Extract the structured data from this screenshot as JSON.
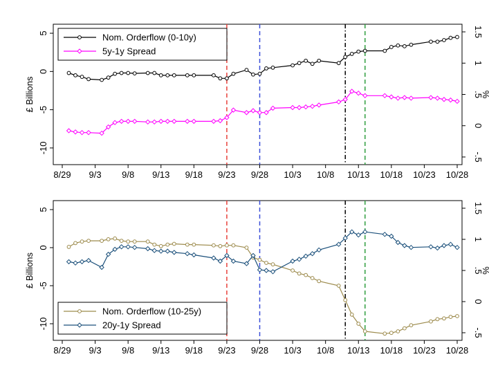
{
  "colors": {
    "black": "#000000",
    "magenta": "#ff00ff",
    "gold": "#9c8a4b",
    "navy": "#1a4f7a",
    "red_line": "#e8403a",
    "blue_line": "#3a4fd8",
    "green_line": "#2f9e3f",
    "black_line": "#000000"
  },
  "chart_data": [
    {
      "type": "line",
      "x_tick_labels": [
        "8/29",
        "9/3",
        "9/8",
        "9/13",
        "9/18",
        "9/23",
        "9/28",
        "10/3",
        "10/8",
        "10/13",
        "10/18",
        "10/23",
        "10/28"
      ],
      "x_ticks": [
        0,
        5,
        10,
        15,
        20,
        25,
        30,
        35,
        40,
        45,
        50,
        55,
        60
      ],
      "x_range": [
        0,
        60
      ],
      "x_unit": "days after 8/29",
      "ylabel_left": "£ Billions",
      "ylabel_right": "%",
      "y_left_ticks": [
        5,
        0,
        -5,
        -10
      ],
      "y_left_range": [
        -12,
        6
      ],
      "y_right_ticks": [
        "1.5",
        "1",
        ".5",
        "0",
        "-.5"
      ],
      "y_right_tick_values": [
        1.5,
        1,
        0.5,
        0,
        -0.5
      ],
      "y_right_range": [
        -0.6,
        1.6
      ],
      "legend_position": "top-left",
      "vlines": [
        {
          "x": 25,
          "style": "dashed",
          "color": "red"
        },
        {
          "x": 30,
          "style": "dashed",
          "color": "blue"
        },
        {
          "x": 43,
          "style": "dashdot",
          "color": "black"
        },
        {
          "x": 46,
          "style": "dashed",
          "color": "green"
        }
      ],
      "series": [
        {
          "name": "Nom. Orderflow (0-10y)",
          "axis": "left",
          "marker": "circle",
          "color": "black",
          "x": [
            1,
            2,
            3,
            4,
            6,
            7,
            8,
            9,
            10,
            11,
            13,
            14,
            15,
            16,
            17,
            19,
            20,
            23,
            24,
            25,
            26,
            28,
            29,
            30,
            31,
            32,
            35,
            36,
            37,
            38,
            39,
            42,
            43,
            44,
            45,
            46,
            49,
            50,
            51,
            52,
            53,
            56,
            57,
            58,
            59,
            60
          ],
          "y": [
            -0.2,
            -0.5,
            -0.7,
            -1.0,
            -1.1,
            -0.8,
            -0.3,
            -0.2,
            -0.2,
            -0.25,
            -0.2,
            -0.2,
            -0.5,
            -0.5,
            -0.5,
            -0.5,
            -0.5,
            -0.5,
            -0.9,
            -0.9,
            -0.3,
            0.2,
            -0.4,
            -0.3,
            0.4,
            0.5,
            0.8,
            1.1,
            1.4,
            1.0,
            1.4,
            1.1,
            1.9,
            2.3,
            2.6,
            2.7,
            2.7,
            3.2,
            3.4,
            3.3,
            3.5,
            3.9,
            3.9,
            4.1,
            4.4,
            4.5
          ]
        },
        {
          "name": "5y-1y Spread",
          "axis": "right",
          "marker": "diamond",
          "color": "magenta",
          "x": [
            1,
            2,
            3,
            4,
            6,
            7,
            8,
            9,
            10,
            11,
            13,
            14,
            15,
            16,
            17,
            19,
            20,
            23,
            24,
            25,
            26,
            28,
            29,
            30,
            31,
            32,
            35,
            36,
            37,
            38,
            39,
            42,
            43,
            44,
            45,
            46,
            49,
            50,
            51,
            52,
            53,
            56,
            57,
            58,
            59,
            60
          ],
          "y": [
            -0.08,
            -0.1,
            -0.11,
            -0.11,
            -0.12,
            -0.02,
            0.05,
            0.07,
            0.07,
            0.07,
            0.06,
            0.06,
            0.07,
            0.07,
            0.07,
            0.07,
            0.07,
            0.07,
            0.08,
            0.13,
            0.25,
            0.21,
            0.24,
            0.21,
            0.21,
            0.28,
            0.29,
            0.29,
            0.3,
            0.31,
            0.33,
            0.38,
            0.42,
            0.55,
            0.52,
            0.48,
            0.48,
            0.46,
            0.44,
            0.45,
            0.44,
            0.45,
            0.44,
            0.42,
            0.41,
            0.39
          ]
        }
      ]
    },
    {
      "type": "line",
      "x_tick_labels": [
        "8/29",
        "9/3",
        "9/8",
        "9/13",
        "9/18",
        "9/23",
        "9/28",
        "10/3",
        "10/8",
        "10/13",
        "10/18",
        "10/23",
        "10/28"
      ],
      "x_ticks": [
        0,
        5,
        10,
        15,
        20,
        25,
        30,
        35,
        40,
        45,
        50,
        55,
        60
      ],
      "x_range": [
        0,
        60
      ],
      "x_unit": "days after 8/29",
      "ylabel_left": "£ Billions",
      "ylabel_right": "%",
      "y_left_ticks": [
        5,
        0,
        -5,
        -10
      ],
      "y_left_range": [
        -12,
        6
      ],
      "y_right_ticks": [
        "1.5",
        "1",
        ".5",
        "0",
        "-.5"
      ],
      "y_right_tick_values": [
        1.5,
        1,
        0.5,
        0,
        -0.5
      ],
      "y_right_range": [
        -0.6,
        1.6
      ],
      "legend_position": "bottom-left",
      "vlines": [
        {
          "x": 25,
          "style": "dashed",
          "color": "red"
        },
        {
          "x": 30,
          "style": "dashed",
          "color": "blue"
        },
        {
          "x": 43,
          "style": "dashdot",
          "color": "black"
        },
        {
          "x": 46,
          "style": "dashed",
          "color": "green"
        }
      ],
      "series": [
        {
          "name": "Nom. Orderflow (10-25y)",
          "axis": "left",
          "marker": "circle",
          "color": "gold",
          "x": [
            1,
            2,
            3,
            4,
            6,
            7,
            8,
            9,
            10,
            11,
            13,
            14,
            15,
            16,
            17,
            19,
            20,
            23,
            24,
            25,
            26,
            28,
            29,
            30,
            31,
            32,
            35,
            36,
            37,
            38,
            39,
            42,
            43,
            44,
            45,
            46,
            49,
            50,
            51,
            52,
            53,
            56,
            57,
            58,
            59,
            60
          ],
          "y": [
            0.1,
            0.6,
            0.8,
            0.9,
            0.9,
            1.1,
            1.2,
            0.9,
            0.8,
            0.8,
            0.8,
            0.4,
            0.2,
            0.4,
            0.5,
            0.4,
            0.4,
            0.3,
            0.2,
            0.3,
            0.3,
            0.0,
            -1.3,
            -1.6,
            -2.0,
            -2.2,
            -3.0,
            -3.4,
            -3.6,
            -4.0,
            -4.4,
            -5.0,
            -6.9,
            -8.8,
            -10.0,
            -11.0,
            -11.3,
            -11.2,
            -11.0,
            -10.6,
            -10.2,
            -9.7,
            -9.4,
            -9.3,
            -9.1,
            -9.0
          ]
        },
        {
          "name": "20y-1y Spread",
          "axis": "right",
          "marker": "diamond",
          "color": "navy",
          "x": [
            1,
            2,
            3,
            4,
            6,
            7,
            8,
            9,
            10,
            11,
            13,
            14,
            15,
            16,
            17,
            19,
            20,
            23,
            24,
            25,
            26,
            28,
            29,
            30,
            31,
            32,
            35,
            36,
            37,
            38,
            39,
            42,
            43,
            44,
            45,
            46,
            49,
            50,
            51,
            52,
            53,
            56,
            57,
            58,
            59,
            60
          ],
          "y": [
            0.64,
            0.62,
            0.64,
            0.66,
            0.55,
            0.76,
            0.84,
            0.88,
            0.88,
            0.87,
            0.85,
            0.82,
            0.81,
            0.81,
            0.79,
            0.77,
            0.75,
            0.7,
            0.65,
            0.74,
            0.65,
            0.61,
            0.74,
            0.51,
            0.5,
            0.48,
            0.65,
            0.68,
            0.73,
            0.77,
            0.83,
            0.92,
            1.02,
            1.12,
            1.07,
            1.12,
            1.08,
            1.05,
            0.95,
            0.9,
            0.87,
            0.88,
            0.86,
            0.9,
            0.92,
            0.87
          ]
        }
      ]
    }
  ]
}
